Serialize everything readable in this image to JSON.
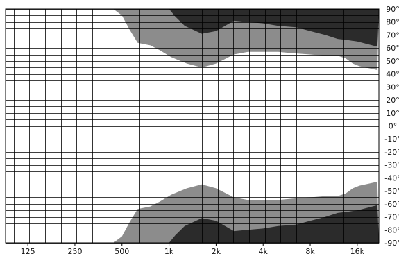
{
  "chart_data": {
    "type": "area",
    "x_scale": "log",
    "x_unit": "Hz",
    "xlim": [
      90,
      22000
    ],
    "ylim": [
      -90,
      90
    ],
    "y_unit": "degrees",
    "x_tick_labels": [
      {
        "x": 125,
        "label": "125"
      },
      {
        "x": 250,
        "label": "250"
      },
      {
        "x": 500,
        "label": "500"
      },
      {
        "x": 1000,
        "label": "1k"
      },
      {
        "x": 2000,
        "label": "2k"
      },
      {
        "x": 4000,
        "label": "4k"
      },
      {
        "x": 8000,
        "label": "8k"
      },
      {
        "x": 16000,
        "label": "16k"
      }
    ],
    "y_tick_labels": [
      {
        "y": 90,
        "label": "90°"
      },
      {
        "y": 80,
        "label": "80°"
      },
      {
        "y": 70,
        "label": "70°"
      },
      {
        "y": 60,
        "label": "60°"
      },
      {
        "y": 50,
        "label": "50°"
      },
      {
        "y": 40,
        "label": "40°"
      },
      {
        "y": 30,
        "label": "30°"
      },
      {
        "y": 20,
        "label": "20°"
      },
      {
        "y": 10,
        "label": "10°"
      },
      {
        "y": 0,
        "label": "0°"
      },
      {
        "y": -10,
        "label": "-10°"
      },
      {
        "y": -20,
        "label": "-20°"
      },
      {
        "y": -30,
        "label": "-30°"
      },
      {
        "y": -40,
        "label": "-40°"
      },
      {
        "y": -50,
        "label": "-50°"
      },
      {
        "y": -60,
        "label": "-60°"
      },
      {
        "y": -70,
        "label": "-70°"
      },
      {
        "y": -80,
        "label": "-80°"
      },
      {
        "y": -90,
        "label": "-90°"
      }
    ],
    "grid": {
      "y_step": 5
    },
    "colors": {
      "white": "#ffffff",
      "gray": "#8c8c8c",
      "dark": "#2b2b2b",
      "grid": "#000000"
    },
    "series": [
      {
        "fill": "gray",
        "boundary": [
          [
            440,
            90
          ],
          [
            500,
            85
          ],
          [
            560,
            74
          ],
          [
            630,
            64
          ],
          [
            760,
            62
          ],
          [
            880,
            58
          ],
          [
            1030,
            53
          ],
          [
            1300,
            48
          ],
          [
            1620,
            45
          ],
          [
            2000,
            48
          ],
          [
            2600,
            55
          ],
          [
            3200,
            57
          ],
          [
            4000,
            57
          ],
          [
            5000,
            57
          ],
          [
            6200,
            56
          ],
          [
            8000,
            55
          ],
          [
            10000,
            54
          ],
          [
            12000,
            54
          ],
          [
            13500,
            52
          ],
          [
            15000,
            48
          ],
          [
            16500,
            46
          ],
          [
            21500,
            43
          ]
        ]
      },
      {
        "fill": "dark",
        "boundary": [
          [
            1000,
            90
          ],
          [
            1100,
            84
          ],
          [
            1260,
            77
          ],
          [
            1620,
            71
          ],
          [
            2000,
            73
          ],
          [
            2600,
            81
          ],
          [
            3200,
            80
          ],
          [
            4000,
            79
          ],
          [
            5000,
            77
          ],
          [
            6500,
            76
          ],
          [
            8000,
            73
          ],
          [
            10000,
            70
          ],
          [
            12000,
            67
          ],
          [
            14000,
            66
          ],
          [
            16000,
            65
          ],
          [
            21500,
            61
          ]
        ]
      }
    ]
  }
}
